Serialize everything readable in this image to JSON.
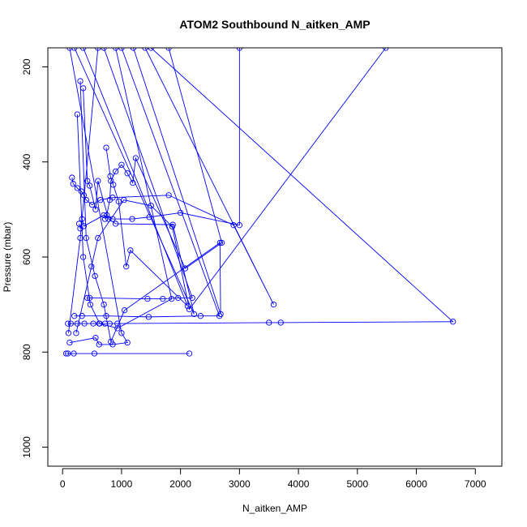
{
  "chart_data": {
    "type": "line",
    "title": "ATOM2 Southbound N_aitken_AMP",
    "xlabel": "N_aitken_AMP",
    "ylabel": "Pressure (mbar)",
    "xlim": [
      -250,
      7450
    ],
    "ylim": [
      1040,
      160
    ],
    "y_reversed": true,
    "x_ticks": [
      0,
      1000,
      2000,
      3000,
      4000,
      5000,
      6000,
      7000
    ],
    "x_tick_labels": [
      "0",
      "1000",
      "2000",
      "3000",
      "4000",
      "5000",
      "6000",
      "7000"
    ],
    "y_ticks": [
      200,
      400,
      600,
      800,
      1000
    ],
    "y_tick_labels": [
      "200",
      "400",
      "600",
      "800",
      "1000"
    ],
    "grid": false,
    "legend": "none",
    "series_color": "#0000ff",
    "marker": "open-circle",
    "series": [
      {
        "points": [
          [
            60,
            803
          ],
          [
            90,
            803
          ],
          [
            190,
            803
          ],
          [
            540,
            803
          ],
          [
            2150,
            803
          ]
        ]
      },
      {
        "points": [
          [
            120,
            780
          ],
          [
            560,
            770
          ],
          [
            620,
            784
          ],
          [
            850,
            784
          ],
          [
            1100,
            780
          ],
          [
            1000,
            760
          ],
          [
            120,
            160
          ]
        ]
      },
      {
        "points": [
          [
            90,
            740
          ],
          [
            140,
            740
          ],
          [
            250,
            740
          ],
          [
            370,
            740
          ],
          [
            520,
            740
          ],
          [
            620,
            740
          ],
          [
            720,
            740
          ],
          [
            800,
            740
          ],
          [
            930,
            740
          ],
          [
            3500,
            738
          ],
          [
            3700,
            738
          ],
          [
            6620,
            736
          ],
          [
            1500,
            160
          ]
        ]
      },
      {
        "points": [
          [
            200,
            724
          ],
          [
            330,
            724
          ],
          [
            740,
            724
          ],
          [
            1460,
            726
          ],
          [
            2340,
            724
          ],
          [
            2660,
            724
          ],
          [
            1000,
            160
          ]
        ]
      },
      {
        "points": [
          [
            420,
            686
          ],
          [
            460,
            686
          ],
          [
            1440,
            688
          ],
          [
            1700,
            688
          ],
          [
            1960,
            686
          ],
          [
            2200,
            686
          ],
          [
            700,
            160
          ]
        ]
      },
      {
        "points": [
          [
            100,
            760
          ],
          [
            300,
            560
          ],
          [
            600,
            160
          ]
        ]
      },
      {
        "points": [
          [
            160,
            433
          ],
          [
            180,
            446
          ],
          [
            250,
            455
          ],
          [
            320,
            462
          ],
          [
            360,
            470
          ],
          [
            400,
            480
          ],
          [
            500,
            490
          ],
          [
            640,
            480
          ],
          [
            850,
            475
          ],
          [
            1800,
            470
          ],
          [
            2900,
            533
          ],
          [
            3580,
            700
          ],
          [
            1400,
            160
          ]
        ]
      },
      {
        "points": [
          [
            280,
            530
          ],
          [
            300,
            540
          ],
          [
            330,
            520
          ],
          [
            360,
            535
          ],
          [
            700,
            512
          ],
          [
            850,
            520
          ],
          [
            1180,
            520
          ],
          [
            1470,
            516
          ],
          [
            2000,
            507
          ],
          [
            3000,
            533
          ],
          [
            3000,
            160
          ]
        ]
      },
      {
        "points": [
          [
            230,
            760
          ],
          [
            490,
            620
          ],
          [
            600,
            560
          ],
          [
            1040,
            480
          ],
          [
            1500,
            492
          ],
          [
            1860,
            536
          ],
          [
            2150,
            710
          ],
          [
            5480,
            160
          ]
        ]
      },
      {
        "points": [
          [
            720,
            520
          ],
          [
            750,
            512
          ],
          [
            800,
            480
          ],
          [
            820,
            440
          ],
          [
            900,
            420
          ],
          [
            1000,
            406
          ],
          [
            1100,
            424
          ],
          [
            1190,
            444
          ],
          [
            1240,
            392
          ],
          [
            2080,
            624
          ],
          [
            2700,
            570
          ],
          [
            1800,
            160
          ]
        ]
      },
      {
        "points": [
          [
            740,
            370
          ],
          [
            810,
            430
          ],
          [
            860,
            448
          ],
          [
            950,
            483
          ],
          [
            1080,
            620
          ],
          [
            1150,
            586
          ],
          [
            2120,
            703
          ],
          [
            350,
            160
          ]
        ]
      },
      {
        "points": [
          [
            350,
            245
          ],
          [
            420,
            440
          ],
          [
            460,
            450
          ],
          [
            560,
            500
          ],
          [
            600,
            440
          ],
          [
            780,
            520
          ],
          [
            900,
            530
          ],
          [
            1870,
            532
          ],
          [
            2230,
            720
          ],
          [
            200,
            160
          ]
        ]
      },
      {
        "points": [
          [
            300,
            230
          ],
          [
            400,
            560
          ],
          [
            550,
            640
          ],
          [
            700,
            700
          ],
          [
            820,
            778
          ],
          [
            1050,
            712
          ],
          [
            2670,
            570
          ],
          [
            2680,
            720
          ],
          [
            1200,
            160
          ]
        ]
      },
      {
        "points": [
          [
            250,
            300
          ],
          [
            350,
            600
          ],
          [
            470,
            700
          ],
          [
            630,
            740
          ],
          [
            930,
            750
          ],
          [
            1850,
            688
          ],
          [
            900,
            160
          ]
        ]
      }
    ]
  }
}
